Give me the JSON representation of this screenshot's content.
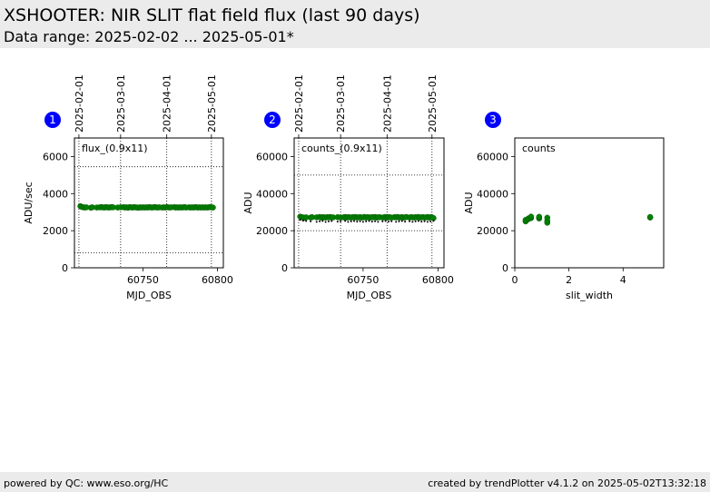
{
  "header": {
    "title": "XSHOOTER: NIR SLIT flat field flux (last 90 days)",
    "subtitle": "Data range: 2025-02-02 ... 2025-05-01*"
  },
  "footer": {
    "left": "powered by QC: www.eso.org/HC",
    "right": "created by trendPlotter v4.1.2 on 2025-05-02T13:32:18"
  },
  "colors": {
    "marker": "#008000",
    "reference": "#000000",
    "badge": "#0000ff",
    "header_bg": "#ebebeb"
  },
  "chart_data": [
    {
      "type": "scatter",
      "badge": "1",
      "annotation": "flux_(0.9x11)",
      "xlabel": "MJD_OBS",
      "ylabel": "ADU/sec",
      "xlim": [
        60704,
        60804
      ],
      "ylim": [
        0,
        7000
      ],
      "xticks": [
        60750,
        60800
      ],
      "yticks": [
        0,
        2000,
        4000,
        6000
      ],
      "date_ticks": [
        {
          "x": 60707,
          "label": "2025-02-01"
        },
        {
          "x": 60735,
          "label": "2025-03-01"
        },
        {
          "x": 60766,
          "label": "2025-04-01"
        },
        {
          "x": 60796,
          "label": "2025-05-01"
        }
      ],
      "hlines": [
        800,
        5450
      ],
      "series": [
        {
          "x": [
            60708,
            60709,
            60710,
            60711,
            60712,
            60715,
            60716,
            60719,
            60721,
            60722,
            60723,
            60724,
            60725,
            60726,
            60727,
            60728,
            60729,
            60730,
            60733,
            60735,
            60737,
            60738,
            60739,
            60740,
            60741,
            60742,
            60743,
            60744,
            60745,
            60746,
            60747,
            60748,
            60749,
            60750,
            60751,
            60752,
            60753,
            60754,
            60755,
            60756,
            60757,
            60758,
            60759,
            60760,
            60761,
            60763,
            60764,
            60765,
            60766,
            60767,
            60768,
            60769,
            60771,
            60772,
            60773,
            60774,
            60775,
            60776,
            60777,
            60778,
            60779,
            60781,
            60782,
            60783,
            60784,
            60785,
            60786,
            60787,
            60788,
            60789,
            60790,
            60791,
            60792,
            60793,
            60794,
            60795,
            60796,
            60797
          ],
          "y": [
            3320,
            3280,
            3260,
            3250,
            3260,
            3240,
            3260,
            3250,
            3260,
            3270,
            3260,
            3250,
            3270,
            3260,
            3250,
            3260,
            3270,
            3260,
            3250,
            3260,
            3270,
            3250,
            3260,
            3240,
            3270,
            3260,
            3250,
            3270,
            3260,
            3250,
            3240,
            3260,
            3250,
            3260,
            3250,
            3260,
            3250,
            3270,
            3260,
            3250,
            3260,
            3270,
            3260,
            3250,
            3260,
            3250,
            3260,
            3250,
            3270,
            3260,
            3250,
            3260,
            3270,
            3250,
            3260,
            3250,
            3260,
            3250,
            3260,
            3270,
            3250,
            3260,
            3250,
            3260,
            3250,
            3270,
            3260,
            3250,
            3260,
            3250,
            3260,
            3250,
            3260,
            3250,
            3260,
            3270,
            3260,
            3250
          ]
        }
      ]
    },
    {
      "type": "scatter",
      "badge": "2",
      "annotation": "counts_(0.9x11)",
      "xlabel": "MJD_OBS",
      "ylabel": "ADU",
      "xlim": [
        60704,
        60804
      ],
      "ylim": [
        0,
        70000
      ],
      "xticks": [
        60750,
        60800
      ],
      "yticks": [
        0,
        20000,
        40000,
        60000
      ],
      "date_ticks": [
        {
          "x": 60707,
          "label": "2025-02-01"
        },
        {
          "x": 60735,
          "label": "2025-03-01"
        },
        {
          "x": 60766,
          "label": "2025-04-01"
        },
        {
          "x": 60796,
          "label": "2025-05-01"
        }
      ],
      "hlines": [
        20000,
        50000
      ],
      "series": [
        {
          "x": [
            60708,
            60709,
            60710,
            60711,
            60712,
            60715,
            60716,
            60719,
            60721,
            60722,
            60723,
            60724,
            60725,
            60726,
            60727,
            60728,
            60729,
            60730,
            60733,
            60735,
            60737,
            60738,
            60739,
            60740,
            60741,
            60742,
            60743,
            60744,
            60745,
            60746,
            60747,
            60748,
            60749,
            60750,
            60751,
            60752,
            60753,
            60754,
            60755,
            60756,
            60757,
            60758,
            60759,
            60760,
            60761,
            60763,
            60764,
            60765,
            60766,
            60767,
            60768,
            60769,
            60771,
            60772,
            60773,
            60774,
            60775,
            60776,
            60777,
            60778,
            60779,
            60781,
            60782,
            60783,
            60784,
            60785,
            60786,
            60787,
            60788,
            60789,
            60790,
            60791,
            60792,
            60793,
            60794,
            60795,
            60796,
            60797
          ],
          "y": [
            27600,
            27300,
            27100,
            27000,
            27200,
            27100,
            27300,
            27200,
            27400,
            27100,
            27300,
            27200,
            27100,
            27300,
            27200,
            27400,
            27100,
            27200,
            27300,
            27100,
            27200,
            27400,
            27100,
            27300,
            27200,
            27100,
            27300,
            27200,
            27400,
            27100,
            27200,
            27300,
            27100,
            27200,
            27400,
            27100,
            27300,
            27200,
            27100,
            27300,
            27200,
            27400,
            27100,
            27200,
            27300,
            27100,
            27200,
            27400,
            27100,
            27300,
            27200,
            27100,
            27300,
            27200,
            27400,
            27100,
            27200,
            27300,
            27100,
            27200,
            27400,
            27100,
            27300,
            27200,
            27100,
            27300,
            27200,
            27400,
            27100,
            27200,
            27300,
            27100,
            27200,
            27400,
            27100,
            27300,
            27200,
            26800
          ]
        },
        {
          "x": [
            60708,
            60710,
            60712,
            60715,
            60719,
            60721,
            60723,
            60725,
            60727,
            60729,
            60733,
            60735,
            60738,
            60740,
            60742,
            60744,
            60746,
            60748,
            60750,
            60752,
            60754,
            60756,
            60758,
            60760,
            60763,
            60765,
            60767,
            60769,
            60772,
            60774,
            60776,
            60778,
            60781,
            60783,
            60785,
            60787,
            60789,
            60791,
            60793,
            60795,
            60797
          ],
          "y": [
            25800,
            25400,
            25200,
            25000,
            24800,
            25100,
            25300,
            24700,
            25000,
            25200,
            24900,
            25100,
            25300,
            24800,
            25000,
            25200,
            24900,
            25100,
            24800,
            25000,
            25200,
            24900,
            25100,
            24800,
            25000,
            25200,
            24900,
            25100,
            24800,
            25000,
            25200,
            24900,
            25100,
            24800,
            25000,
            25200,
            24900,
            25100,
            24800,
            25000,
            25300
          ]
        }
      ]
    },
    {
      "type": "scatter",
      "badge": "3",
      "annotation": "counts",
      "xlabel": "slit_width",
      "ylabel": "ADU",
      "xlim": [
        0,
        5.5
      ],
      "ylim": [
        0,
        70000
      ],
      "xticks": [
        0,
        2,
        4
      ],
      "yticks": [
        0,
        20000,
        40000,
        60000
      ],
      "series": [
        {
          "x": [
            0.4,
            0.4,
            0.5,
            0.5,
            0.6,
            0.6,
            0.6,
            0.9,
            0.9,
            0.9,
            1.2,
            1.2,
            1.2,
            5.0,
            5.0
          ],
          "y": [
            25000,
            25800,
            26200,
            26600,
            26800,
            27300,
            27600,
            26600,
            27100,
            27500,
            24300,
            25300,
            27000,
            27100,
            27400
          ]
        }
      ]
    }
  ]
}
